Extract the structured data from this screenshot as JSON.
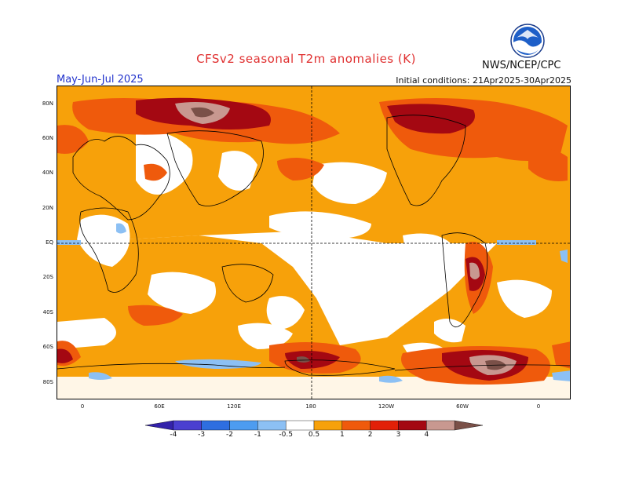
{
  "header": {
    "title": "CFSv2 seasonal T2m anomalies (K)",
    "period": "May-Jun-Jul 2025",
    "initial_conditions": "Initial conditions: 21Apr2025-30Apr2025",
    "org": "NWS/NCEP/CPC",
    "logo_icon": "noaa-logo-icon"
  },
  "map": {
    "lat_labels": [
      "80N",
      "60N",
      "40N",
      "20N",
      "EQ",
      "20S",
      "40S",
      "60S",
      "80S"
    ],
    "lon_labels": [
      "0",
      "60E",
      "120E",
      "180",
      "120W",
      "60W",
      "0"
    ]
  },
  "colorbar": {
    "labels": [
      "-4",
      "-3",
      "-2",
      "-1",
      "-0.5",
      "0.5",
      "1",
      "2",
      "3",
      "4"
    ],
    "colors": [
      "#3322aa",
      "#4a3fd0",
      "#2e6ee0",
      "#4d9cf0",
      "#8cc0f4",
      "#ffffff",
      "#f7a10a",
      "#ef5a0c",
      "#e22008",
      "#a40812",
      "#c89890",
      "#7a5048"
    ]
  }
}
